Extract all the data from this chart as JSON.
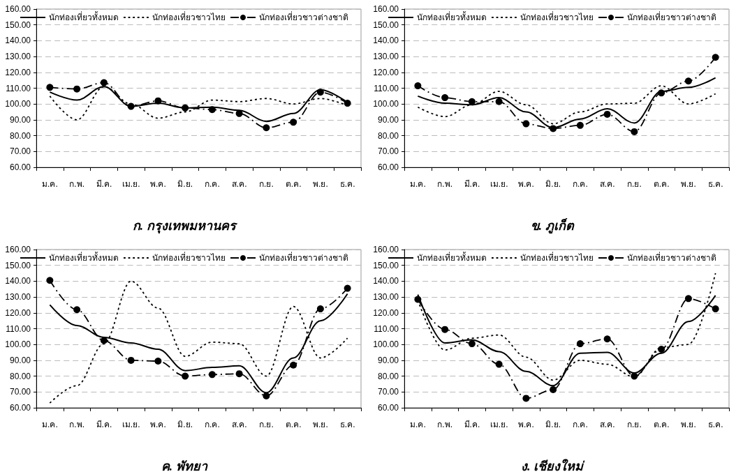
{
  "chart_data": [
    {
      "type": "line",
      "title": "ก. กรุงเทพมหานคร",
      "categories": [
        "ม.ค.",
        "ก.พ.",
        "มี.ค.",
        "เม.ย.",
        "พ.ค.",
        "มิ.ย.",
        "ก.ค.",
        "ส.ค.",
        "ก.ย.",
        "ต.ค.",
        "พ.ย.",
        "ธ.ค."
      ],
      "ylim": [
        60,
        160
      ],
      "yticks": [
        {
          "value": 60,
          "label": "60.00"
        },
        {
          "value": 70,
          "label": "70.00"
        },
        {
          "value": 80,
          "label": "80.00"
        },
        {
          "value": 90,
          "label": "90.00"
        },
        {
          "value": 100,
          "label": "100.00"
        },
        {
          "value": 110,
          "label": "110.00"
        },
        {
          "value": 120,
          "label": "120.00"
        },
        {
          "value": 130,
          "label": "130.00"
        },
        {
          "value": 140,
          "label": "140.00"
        },
        {
          "value": 150,
          "label": "150.00"
        },
        {
          "value": 160,
          "label": "160.00"
        }
      ],
      "grid": "y",
      "legend": "top",
      "series": [
        {
          "name": "นักท่องเที่ยวทั้งหมด",
          "color": "#000000",
          "line_style": "solid",
          "marker": "none",
          "values": [
            107.5,
            102.5,
            111,
            98.5,
            100.5,
            97.5,
            98,
            96,
            89,
            94,
            109,
            101
          ]
        },
        {
          "name": "นักท่องเที่ยวชาวไทย",
          "color": "#000000",
          "line_style": "dotted",
          "marker": "none",
          "values": [
            105,
            90,
            111,
            100,
            91,
            95,
            102.5,
            101.5,
            103.5,
            100,
            103.5,
            99
          ]
        },
        {
          "name": "นักท่องเที่ยวชาวต่างชาติ",
          "color": "#000000",
          "line_style": "dashed",
          "marker": "circle",
          "values": [
            110.5,
            109.5,
            113.5,
            98.5,
            102,
            97.5,
            96.5,
            94,
            85,
            88.5,
            107.5,
            100.5
          ]
        }
      ]
    },
    {
      "type": "line",
      "title": "ข. ภูเก็ต",
      "categories": [
        "ม.ค.",
        "ก.พ.",
        "มี.ค.",
        "เม.ย.",
        "พ.ค.",
        "มิ.ย.",
        "ก.ค.",
        "ส.ค.",
        "ก.ย.",
        "ต.ค.",
        "พ.ย.",
        "ธ.ค."
      ],
      "ylim": [
        60,
        160
      ],
      "yticks": [
        {
          "value": 60,
          "label": "60.00"
        },
        {
          "value": 70,
          "label": "70.00"
        },
        {
          "value": 80,
          "label": "80.00"
        },
        {
          "value": 90,
          "label": "90.00"
        },
        {
          "value": 100,
          "label": "100.00"
        },
        {
          "value": 110,
          "label": "110.00"
        },
        {
          "value": 120,
          "label": "120.00"
        },
        {
          "value": 130,
          "label": "130.00"
        },
        {
          "value": 140,
          "label": "140.00"
        },
        {
          "value": 150,
          "label": "150.00"
        },
        {
          "value": 160,
          "label": "160.00"
        }
      ],
      "grid": "y",
      "legend": "top",
      "series": [
        {
          "name": "นักท่องเที่ยวทั้งหมด",
          "color": "#000000",
          "line_style": "solid",
          "marker": "none",
          "values": [
            105,
            100.5,
            99.5,
            104,
            95,
            85,
            90.5,
            97,
            88,
            108,
            110.5,
            116.5
          ]
        },
        {
          "name": "นักท่องเที่ยวชาวไทย",
          "color": "#000000",
          "line_style": "dotted",
          "marker": "none",
          "values": [
            98,
            92,
            99.5,
            108,
            99.5,
            87.5,
            95,
            100,
            100.5,
            111.5,
            100,
            106.5
          ]
        },
        {
          "name": "นักท่องเที่ยวชาวต่างชาติ",
          "color": "#000000",
          "line_style": "dashed",
          "marker": "circle",
          "values": [
            111.5,
            104,
            101.5,
            101.5,
            87.5,
            84.5,
            86.5,
            93.5,
            82.5,
            107,
            114.5,
            129.5
          ]
        }
      ]
    },
    {
      "type": "line",
      "title": "ค. พัทยา",
      "categories": [
        "ม.ค.",
        "ก.พ.",
        "มี.ค.",
        "เม.ย.",
        "พ.ค.",
        "มิ.ย.",
        "ก.ค.",
        "ส.ค.",
        "ก.ย.",
        "ต.ค.",
        "พ.ย.",
        "ธ.ค."
      ],
      "ylim": [
        60,
        160
      ],
      "yticks": [
        {
          "value": 60,
          "label": "60.00"
        },
        {
          "value": 70,
          "label": "70.00"
        },
        {
          "value": 80,
          "label": "80.00"
        },
        {
          "value": 90,
          "label": "90.00"
        },
        {
          "value": 100,
          "label": "100.00"
        },
        {
          "value": 110,
          "label": "110.00"
        },
        {
          "value": 120,
          "label": "120.00"
        },
        {
          "value": 130,
          "label": "130.00"
        },
        {
          "value": 140,
          "label": "140.00"
        },
        {
          "value": 150,
          "label": "150.00"
        },
        {
          "value": 160,
          "label": "160.00"
        }
      ],
      "grid": "y",
      "legend": "top",
      "series": [
        {
          "name": "นักท่องเที่ยวทั้งหมด",
          "color": "#000000",
          "line_style": "solid",
          "marker": "none",
          "values": [
            125,
            112,
            104.5,
            101,
            97,
            83.5,
            85.5,
            86.5,
            69.5,
            91.5,
            115,
            132
          ]
        },
        {
          "name": "นักท่องเที่ยวชาวไทย",
          "color": "#000000",
          "line_style": "dotted",
          "marker": "none",
          "values": [
            63,
            74,
            100.5,
            140,
            123,
            92.5,
            101.5,
            100.5,
            80,
            124,
            91.5,
            104
          ]
        },
        {
          "name": "นักท่องเที่ยวชาวต่างชาติ",
          "color": "#000000",
          "line_style": "dashed",
          "marker": "circle",
          "values": [
            140.5,
            122,
            102.5,
            90,
            89.5,
            80,
            81,
            81.5,
            67.5,
            87,
            122.5,
            135.5
          ]
        }
      ]
    },
    {
      "type": "line",
      "title": "ง. เชียงใหม่",
      "categories": [
        "ม.ค.",
        "ก.พ.",
        "มี.ค.",
        "เม.ย.",
        "พ.ค.",
        "มิ.ย.",
        "ก.ค.",
        "ส.ค.",
        "ก.ย.",
        "ต.ค.",
        "พ.ย.",
        "ธ.ค."
      ],
      "ylim": [
        60,
        160
      ],
      "yticks": [
        {
          "value": 60,
          "label": "60.00"
        },
        {
          "value": 70,
          "label": "70.00"
        },
        {
          "value": 80,
          "label": "80.00"
        },
        {
          "value": 90,
          "label": "90.00"
        },
        {
          "value": 100,
          "label": "100.00"
        },
        {
          "value": 110,
          "label": "110.00"
        },
        {
          "value": 120,
          "label": "120.00"
        },
        {
          "value": 130,
          "label": "130.00"
        },
        {
          "value": 140,
          "label": "140.00"
        },
        {
          "value": 150,
          "label": "150.00"
        },
        {
          "value": 160,
          "label": "160.00"
        }
      ],
      "grid": "y",
      "legend": "top",
      "series": [
        {
          "name": "นักท่องเที่ยวทั้งหมด",
          "color": "#000000",
          "line_style": "solid",
          "marker": "none",
          "values": [
            131.5,
            101,
            103,
            95.5,
            83,
            74,
            94.5,
            95,
            82,
            94.5,
            114.5,
            131
          ]
        },
        {
          "name": "นักท่องเที่ยวชาวไทย",
          "color": "#000000",
          "line_style": "dotted",
          "marker": "none",
          "values": [
            128,
            96.5,
            104,
            106,
            92,
            77.5,
            90,
            87.5,
            79.5,
            98,
            100,
            145
          ]
        },
        {
          "name": "นักท่องเที่ยวชาวต่างชาติ",
          "color": "#000000",
          "line_style": "dashed",
          "marker": "circle",
          "values": [
            128.5,
            109.5,
            100.5,
            87.5,
            66,
            71.5,
            100.5,
            103.5,
            80,
            97,
            129,
            122.5
          ]
        }
      ]
    }
  ]
}
